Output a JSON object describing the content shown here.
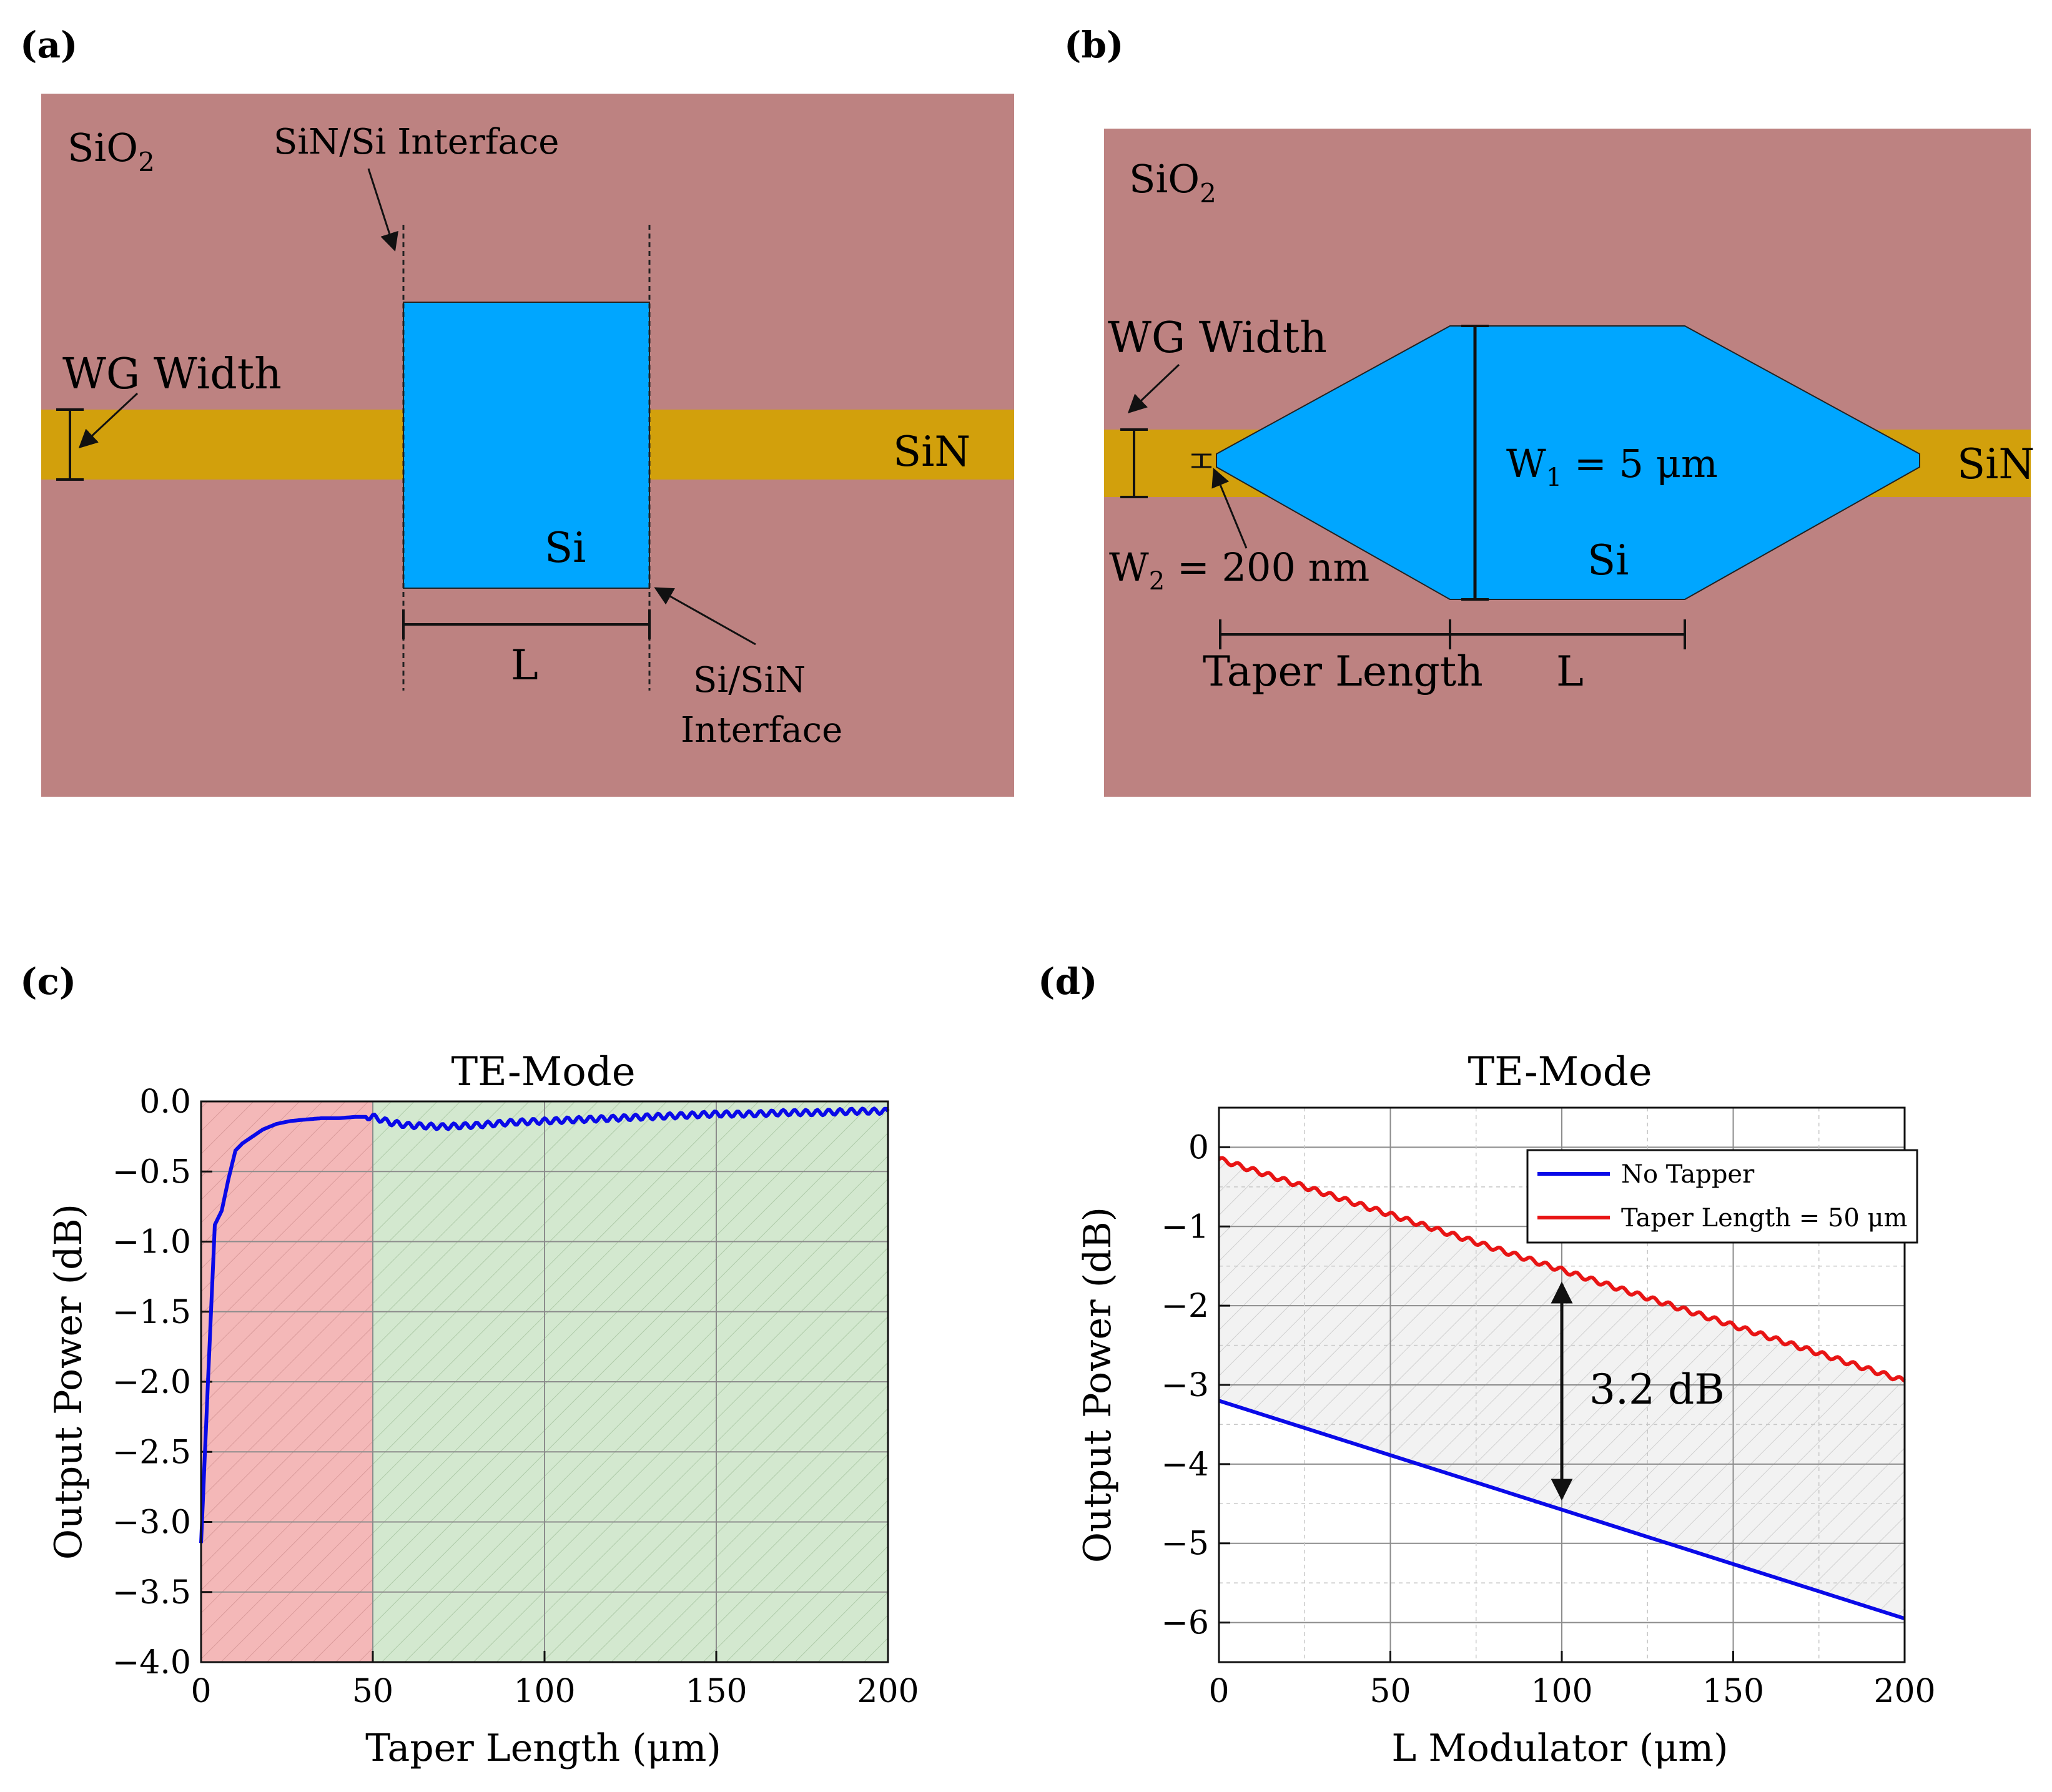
{
  "panel_a": {
    "label": "(a)",
    "cladding": "SiO",
    "cladding_sub": "2",
    "wg_width": "WG Width",
    "sin": "SiN",
    "si": "Si",
    "length": "L",
    "iface_top": "SiN/Si Interface",
    "iface_bot_1": "Si/SiN",
    "iface_bot_2": "Interface"
  },
  "panel_b": {
    "label": "(b)",
    "cladding": "SiO",
    "cladding_sub": "2",
    "wg_width": "WG Width",
    "sin": "SiN",
    "si": "Si",
    "w1_pre": "W",
    "w1_sub": "1",
    "w1_post": " = 5 μm",
    "w2_pre": "W",
    "w2_sub": "2",
    "w2_post": " = 200 nm",
    "taper_length": "Taper Length",
    "length": "L"
  },
  "colors": {
    "sio2": "#bd8281",
    "sin": "#d2a00c",
    "si": "#00a6ff",
    "line_blue": "#0a0ae8",
    "line_red": "#e81414",
    "zone_red": "#f4b8b8",
    "zone_green": "#d3e8cf",
    "fill_grey": "#f0f0f0"
  },
  "chart_data": [
    {
      "id": "c",
      "label": "(c)",
      "type": "line",
      "title": "TE-Mode",
      "xlabel": "Taper Length (μm)",
      "ylabel": "Output Power (dB)",
      "xlim": [
        0,
        200
      ],
      "ylim": [
        -4.0,
        0.0
      ],
      "xticks": [
        "0",
        "50",
        "100",
        "150",
        "200"
      ],
      "yticks": [
        "0.0",
        "−0.5",
        "−1.0",
        "−1.5",
        "−2.0",
        "−2.5",
        "−3.0",
        "−3.5",
        "−4.0"
      ],
      "grid": true,
      "regions": [
        {
          "x_from": 0,
          "x_to": 50,
          "color": "red"
        },
        {
          "x_from": 50,
          "x_to": 200,
          "color": "green"
        }
      ],
      "series": [
        {
          "name": "TE-Mode",
          "color": "blue",
          "x": [
            0,
            2,
            4,
            6,
            8,
            10,
            12,
            15,
            18,
            22,
            26,
            30,
            35,
            40,
            45,
            50,
            55,
            60,
            70,
            80,
            90,
            100,
            110,
            120,
            130,
            140,
            150,
            160,
            170,
            180,
            190,
            200
          ],
          "y": [
            -3.15,
            -2.0,
            -0.88,
            -0.78,
            -0.55,
            -0.35,
            -0.3,
            -0.25,
            -0.2,
            -0.16,
            -0.14,
            -0.13,
            -0.12,
            -0.12,
            -0.11,
            -0.11,
            -0.15,
            -0.17,
            -0.18,
            -0.17,
            -0.15,
            -0.14,
            -0.13,
            -0.12,
            -0.11,
            -0.1,
            -0.09,
            -0.09,
            -0.08,
            -0.08,
            -0.07,
            -0.07
          ]
        }
      ]
    },
    {
      "id": "d",
      "label": "(d)",
      "type": "line",
      "title": "TE-Mode",
      "xlabel": "L Modulator (μm)",
      "ylabel": "Output Power (dB)",
      "xlim": [
        0,
        200
      ],
      "ylim": [
        -6.5,
        0.5
      ],
      "xticks": [
        "0",
        "50",
        "100",
        "150",
        "200"
      ],
      "yticks": [
        "0",
        "−1",
        "−2",
        "−3",
        "−4",
        "−5",
        "−6"
      ],
      "grid": true,
      "legend_position": "top-right",
      "annotation": "3.2 dB",
      "series": [
        {
          "name": "No Tapper",
          "color": "blue",
          "x": [
            0,
            200
          ],
          "y": [
            -3.2,
            -5.95
          ]
        },
        {
          "name": "Taper Length = 50 μm",
          "color": "red",
          "x": [
            0,
            200
          ],
          "y": [
            -0.15,
            -2.95
          ]
        }
      ]
    }
  ]
}
